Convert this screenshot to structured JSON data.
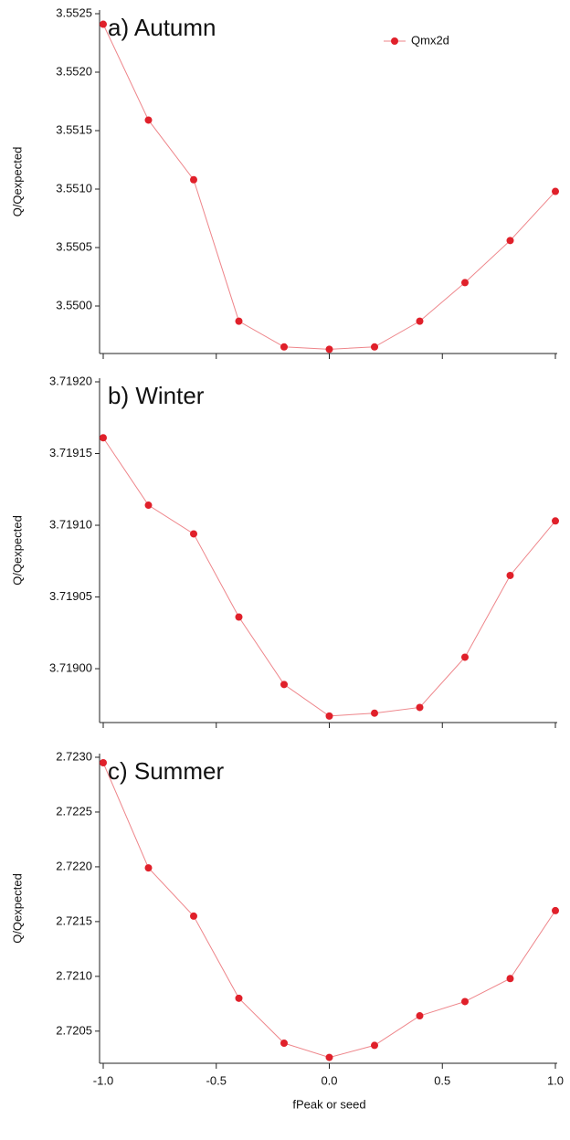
{
  "chart_data": [
    {
      "type": "line",
      "title": "a) Autumn",
      "y_label": "Q/Qexpected",
      "x": [
        -1.0,
        -0.8,
        -0.6,
        -0.4,
        -0.2,
        0.0,
        0.2,
        0.4,
        0.6,
        0.8,
        1.0
      ],
      "series": [
        {
          "name": "Qmx2d",
          "color": "#e0202a",
          "values": [
            3.55241,
            3.55159,
            3.55108,
            3.54987,
            3.54965,
            3.54963,
            3.54965,
            3.54987,
            3.5502,
            3.55056,
            3.55098
          ]
        }
      ],
      "xlim": [
        -1,
        1
      ],
      "ylim": [
        3.549625,
        3.5525
      ],
      "xticks": [
        {
          "value": -1,
          "label": "-1.0"
        },
        -0.5,
        {
          "value": 0,
          "label": "0.0"
        },
        0.5,
        {
          "value": 1,
          "label": "1.0"
        }
      ],
      "yticks": [
        {
          "value": 3.55,
          "label": "3.5500"
        },
        3.5505,
        {
          "value": 3.551,
          "label": "3.5510"
        },
        3.5515,
        {
          "value": 3.552,
          "label": "3.5520"
        },
        3.5525
      ],
      "legend": "top-right"
    },
    {
      "type": "line",
      "title": "b) Winter",
      "y_label": "Q/Qexpected",
      "x": [
        -1.0,
        -0.8,
        -0.6,
        -0.4,
        -0.2,
        0.0,
        0.2,
        0.4,
        0.6,
        0.8,
        1.0
      ],
      "series": [
        {
          "color": "#e0202a",
          "values": [
            3.719161,
            3.719114,
            3.719094,
            3.719036,
            3.718989,
            3.718967,
            3.718969,
            3.718973,
            3.719008,
            3.719065,
            3.719103
          ]
        }
      ],
      "xlim": [
        -1,
        1
      ],
      "ylim": [
        3.718965,
        3.7192
      ],
      "xticks": [
        -1,
        -0.5,
        0,
        0.5,
        1
      ],
      "yticks": [
        {
          "value": 3.719,
          "label": "3.71900"
        },
        3.71905,
        {
          "value": 3.7191,
          "label": "3.71910"
        },
        3.71915,
        {
          "value": 3.7192,
          "label": "3.71920"
        }
      ]
    },
    {
      "type": "line",
      "title": "c) Summer",
      "y_label": "Q/Qexpected",
      "x_label": "fPeak or seed",
      "x": [
        -1.0,
        -0.8,
        -0.6,
        -0.4,
        -0.2,
        0.0,
        0.2,
        0.4,
        0.6,
        0.8,
        1.0
      ],
      "series": [
        {
          "color": "#e0202a",
          "values": [
            2.72295,
            2.72199,
            2.72155,
            2.7208,
            2.72039,
            2.72026,
            2.72037,
            2.72064,
            2.72077,
            2.72098,
            2.7216
          ]
        }
      ],
      "xlim": [
        -1,
        1
      ],
      "ylim": [
        2.72024,
        2.723
      ],
      "xticks": [
        {
          "value": -1,
          "label": "-1.0"
        },
        -0.5,
        {
          "value": 0,
          "label": "0.0"
        },
        0.5,
        {
          "value": 1,
          "label": "1.0"
        }
      ],
      "yticks": [
        2.7205,
        {
          "value": 2.721,
          "label": "2.7210"
        },
        2.7215,
        {
          "value": 2.722,
          "label": "2.7220"
        },
        2.7225,
        {
          "value": 2.723,
          "label": "2.7230"
        }
      ],
      "show_xtick_labels": true
    }
  ]
}
